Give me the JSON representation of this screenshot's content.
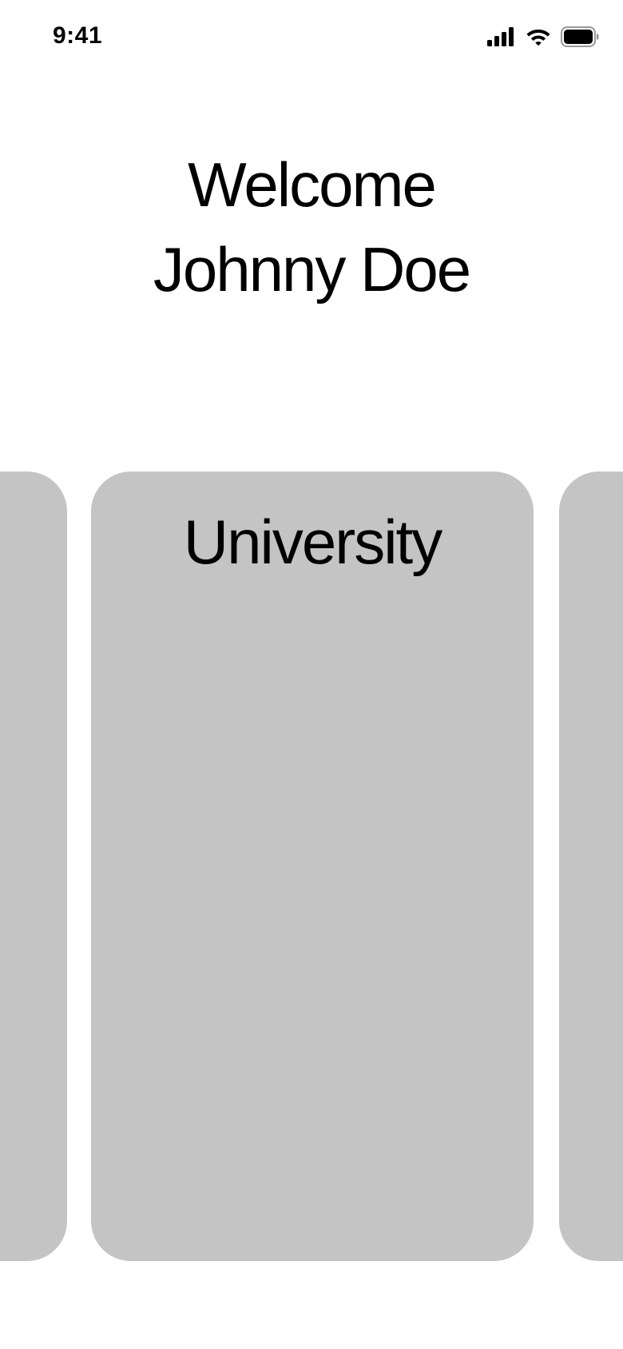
{
  "status_bar": {
    "time": "9:41",
    "icons": [
      "cellular-signal-icon",
      "wifi-icon",
      "battery-icon"
    ]
  },
  "greeting": {
    "line1": "Welcome",
    "line2": "Johnny Doe"
  },
  "carousel": {
    "cards": [
      {
        "title": ""
      },
      {
        "title": "University"
      },
      {
        "title": ""
      }
    ],
    "card_color": "#c4c4c4"
  }
}
